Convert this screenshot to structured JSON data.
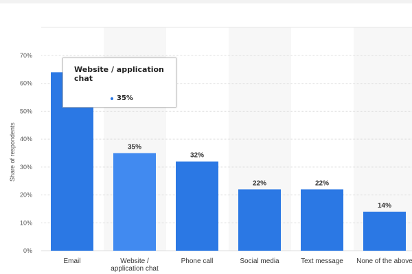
{
  "chart_data": {
    "type": "bar",
    "title": "",
    "xlabel": "",
    "ylabel": "Share of respondents",
    "ylim": [
      0,
      70
    ],
    "yticks": [
      "0%",
      "10%",
      "20%",
      "30%",
      "40%",
      "50%",
      "60%",
      "70%"
    ],
    "categories": [
      "Email",
      "Website / application chat",
      "Phone call",
      "Social media",
      "Text message",
      "None of the above"
    ],
    "category_labels": [
      [
        "Email"
      ],
      [
        "Website /",
        "application chat"
      ],
      [
        "Phone call"
      ],
      [
        "Social media"
      ],
      [
        "Text message"
      ],
      [
        "None of the above"
      ]
    ],
    "values": [
      64,
      35,
      32,
      22,
      22,
      14
    ],
    "data_labels": [
      "",
      "35%",
      "32%",
      "22%",
      "22%",
      "14%"
    ],
    "highlighted_index": 1,
    "grid": true,
    "colors": {
      "bar": "#2b78e4",
      "bar_highlight": "#418af0",
      "band": "#f7f7f7",
      "grid": "#dcdcdc"
    }
  },
  "tooltip": {
    "title": "Website / application chat",
    "value": "35%"
  }
}
